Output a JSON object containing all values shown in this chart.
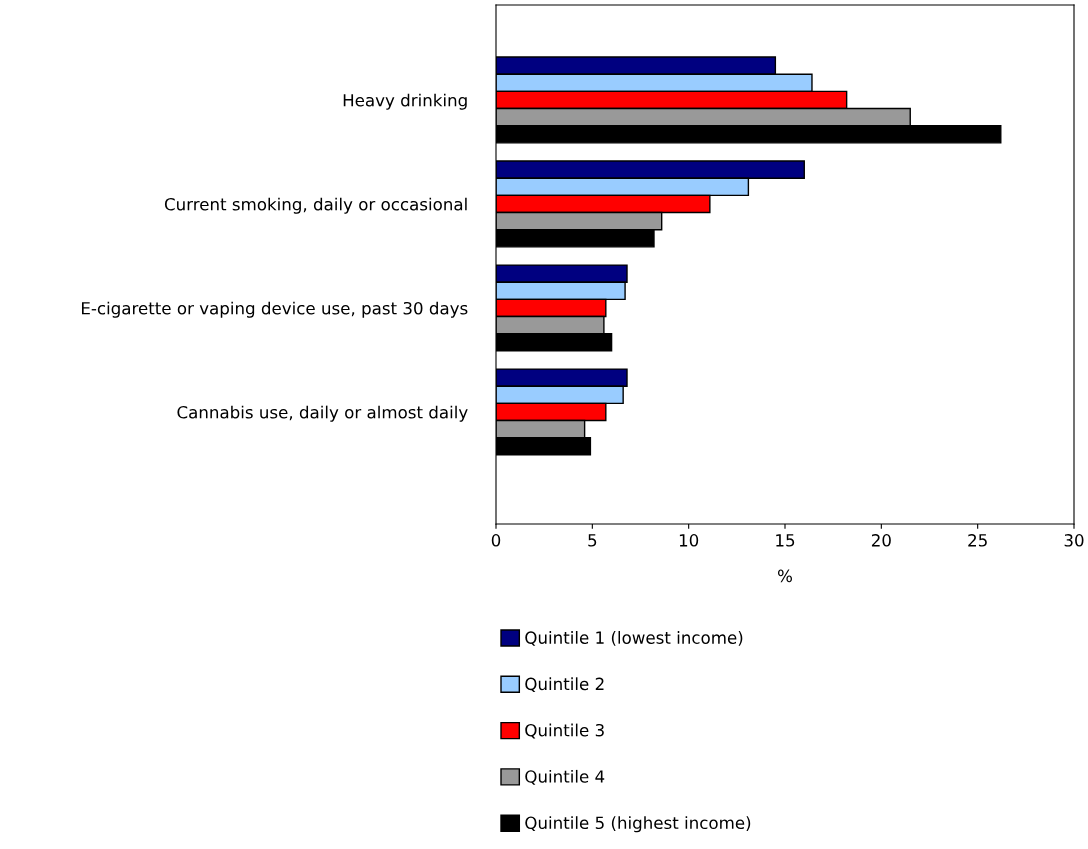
{
  "chart_data": {
    "type": "bar",
    "orientation": "horizontal",
    "xlabel": "%",
    "categories": [
      "Heavy drinking",
      "Current smoking, daily or occasional",
      "E-cigarette or vaping device use, past 30 days",
      "Cannabis use, daily or almost daily"
    ],
    "series": [
      {
        "name": "Quintile 1 (lowest income)",
        "color": "#000080",
        "values": [
          14.5,
          16.0,
          6.8,
          6.8
        ]
      },
      {
        "name": "Quintile 2",
        "color": "#99ccff",
        "values": [
          16.4,
          13.1,
          6.7,
          6.6
        ]
      },
      {
        "name": "Quintile 3",
        "color": "#ff0000",
        "values": [
          18.2,
          11.1,
          5.7,
          5.7
        ]
      },
      {
        "name": "Quintile 4",
        "color": "#999999",
        "values": [
          21.5,
          8.6,
          5.6,
          4.6
        ]
      },
      {
        "name": "Quintile 5 (highest income)",
        "color": "#000000",
        "values": [
          26.2,
          8.2,
          6.0,
          4.9
        ]
      }
    ],
    "xlim": [
      0,
      30
    ],
    "xticks": [
      0,
      5,
      10,
      15,
      20,
      25,
      30
    ],
    "grid": false,
    "legend": "bottom"
  }
}
